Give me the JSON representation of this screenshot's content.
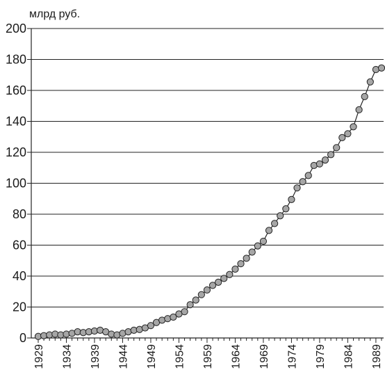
{
  "chart_data": {
    "type": "line",
    "title": "",
    "ylabel": "млрд руб.",
    "xlabel": "",
    "ylim": [
      0,
      200
    ],
    "yticks": [
      0,
      20,
      40,
      60,
      80,
      100,
      120,
      140,
      160,
      180,
      200
    ],
    "xlim": [
      1929,
      1990
    ],
    "xticks": [
      1929,
      1934,
      1939,
      1944,
      1949,
      1954,
      1959,
      1964,
      1969,
      1974,
      1979,
      1984,
      1989
    ],
    "grid": "horizontal",
    "marker": "circle",
    "colors": {
      "marker_fill": "#a6a6a6",
      "line": "#222222",
      "grid": "#222222"
    },
    "series": [
      {
        "x": [
          1929,
          1930,
          1931,
          1932,
          1933,
          1934,
          1935,
          1936,
          1937,
          1938,
          1939,
          1940,
          1941,
          1942,
          1943,
          1944,
          1945,
          1946,
          1947,
          1948,
          1949,
          1950,
          1951,
          1952,
          1953,
          1954,
          1955,
          1956,
          1957,
          1958,
          1959,
          1960,
          1961,
          1962,
          1963,
          1964,
          1965,
          1966,
          1967,
          1968,
          1969,
          1970,
          1971,
          1972,
          1973,
          1974,
          1975,
          1976,
          1977,
          1978,
          1979,
          1980,
          1981,
          1982,
          1983,
          1984,
          1985,
          1986,
          1987,
          1988,
          1989,
          1990
        ],
        "values": [
          1,
          1.5,
          2,
          2.5,
          2,
          2.5,
          3,
          4,
          3.5,
          4,
          4.5,
          5,
          4,
          2.5,
          2,
          3,
          4,
          5,
          5.5,
          6.5,
          8,
          10,
          11.5,
          12.5,
          13.5,
          15.5,
          17,
          21.5,
          24.5,
          28,
          31,
          34,
          36,
          38.5,
          41,
          44.5,
          48,
          51.5,
          55.5,
          59.5,
          62.5,
          69.5,
          74,
          79,
          83.5,
          89.5,
          97,
          101,
          105,
          111.5,
          112.5,
          115,
          118.5,
          123,
          129.5,
          132,
          136.5,
          147.5,
          156,
          165.5,
          173.5,
          174.5
        ]
      }
    ]
  }
}
